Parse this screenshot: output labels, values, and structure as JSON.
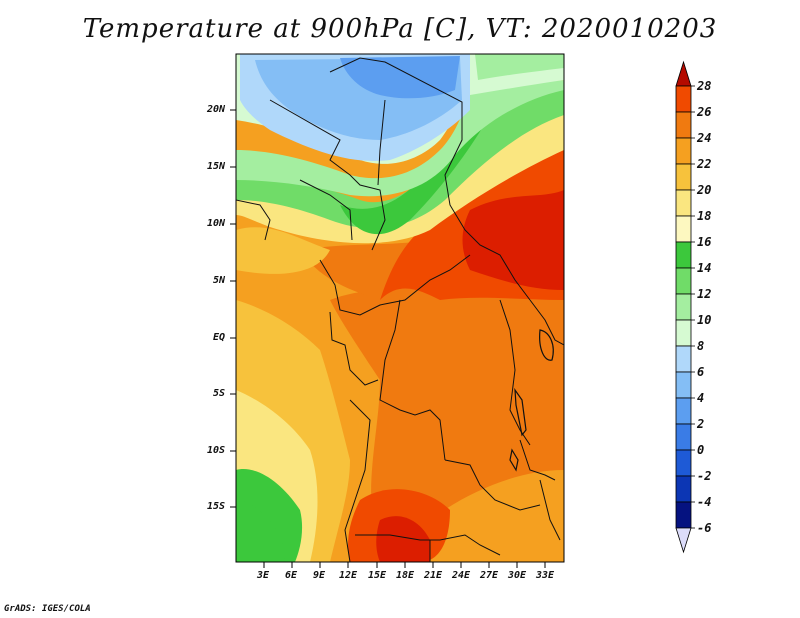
{
  "title": "Temperature at 900hPa [C], VT: 2020010203",
  "footer": "GrADS: IGES/COLA",
  "y_axis_labels": [
    "20N",
    "15N",
    "10N",
    "5N",
    "EQ",
    "5S",
    "10S",
    "15S"
  ],
  "x_axis_labels": [
    "3E",
    "6E",
    "9E",
    "12E",
    "15E",
    "18E",
    "21E",
    "24E",
    "27E",
    "30E",
    "33E"
  ],
  "colorbar": {
    "labels": [
      "28",
      "26",
      "24",
      "22",
      "20",
      "18",
      "16",
      "14",
      "12",
      "10",
      "8",
      "6",
      "4",
      "2",
      "0",
      "-2",
      "-4",
      "-6"
    ],
    "colors": [
      "#dc1e00",
      "#f04a00",
      "#f07a10",
      "#f5a020",
      "#f7c23c",
      "#fae680",
      "#fdf8c0",
      "#3cc83c",
      "#70dc68",
      "#a4eea0",
      "#d6fad2",
      "#b0d8fa",
      "#84bef5",
      "#5c9ef0",
      "#3a7ce6",
      "#1e5ad6",
      "#0c36b4",
      "#051280"
    ],
    "top_arrow_color": "#b40a00",
    "bottom_arrow_color": "#dcdcfa"
  }
}
